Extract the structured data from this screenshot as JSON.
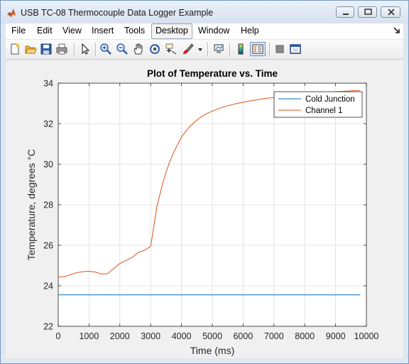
{
  "window": {
    "title": "USB TC-08 Thermocouple Data Logger Example",
    "icons": {
      "app": "matlab-icon",
      "minimize": "minimize-icon",
      "maximize": "maximize-icon",
      "close": "close-icon"
    }
  },
  "menubar": {
    "items": [
      "File",
      "Edit",
      "View",
      "Insert",
      "Tools",
      "Desktop",
      "Window",
      "Help"
    ],
    "active": "Desktop"
  },
  "toolbar": {
    "buttons": [
      "new-figure-icon",
      "open-file-icon",
      "save-icon",
      "print-icon",
      "edit-plot-arrow-icon",
      "zoom-in-icon",
      "zoom-out-icon",
      "pan-hand-icon",
      "rotate-3d-icon",
      "data-cursor-icon",
      "brush-icon",
      "brush-dropdown-icon",
      "link-plot-icon",
      "insert-colorbar-icon",
      "insert-legend-icon",
      "hide-plot-tools-icon",
      "show-plot-tools-icon"
    ]
  },
  "chart_data": {
    "type": "line",
    "title": "Plot of Temperature vs. Time",
    "xlabel": "Time (ms)",
    "ylabel": "Temperature, degrees °C",
    "xlim": [
      0,
      10000
    ],
    "ylim": [
      22,
      34
    ],
    "xticks": [
      "0",
      "1000",
      "2000",
      "3000",
      "4000",
      "5000",
      "6000",
      "7000",
      "8000",
      "9000",
      "10000"
    ],
    "yticks": [
      "22",
      "24",
      "26",
      "28",
      "30",
      "32",
      "34"
    ],
    "grid": true,
    "legend": "top-right",
    "series": [
      {
        "name": "Cold Junction",
        "color": "#0072bd",
        "x": [
          0,
          9800
        ],
        "y": [
          23.55,
          23.55
        ]
      },
      {
        "name": "Channel 1",
        "color": "#d95319",
        "x": [
          0,
          200,
          400,
          600,
          800,
          1000,
          1200,
          1400,
          1600,
          1800,
          2000,
          2200,
          2400,
          2600,
          2800,
          3000,
          3100,
          3200,
          3300,
          3400,
          3500,
          3600,
          3800,
          4000,
          4200,
          4400,
          4600,
          4800,
          5000,
          5400,
          5800,
          6200,
          6600,
          7000,
          7400,
          7800,
          8200,
          8600,
          9000,
          9400,
          9800
        ],
        "y": [
          24.45,
          24.45,
          24.55,
          24.65,
          24.7,
          24.72,
          24.68,
          24.58,
          24.6,
          24.85,
          25.1,
          25.25,
          25.4,
          25.65,
          25.75,
          25.95,
          26.9,
          27.9,
          28.5,
          29.1,
          29.6,
          30.05,
          30.75,
          31.35,
          31.75,
          32.05,
          32.3,
          32.48,
          32.62,
          32.85,
          33.0,
          33.12,
          33.22,
          33.3,
          33.38,
          33.44,
          33.5,
          33.55,
          33.58,
          33.61,
          33.65
        ]
      }
    ]
  }
}
